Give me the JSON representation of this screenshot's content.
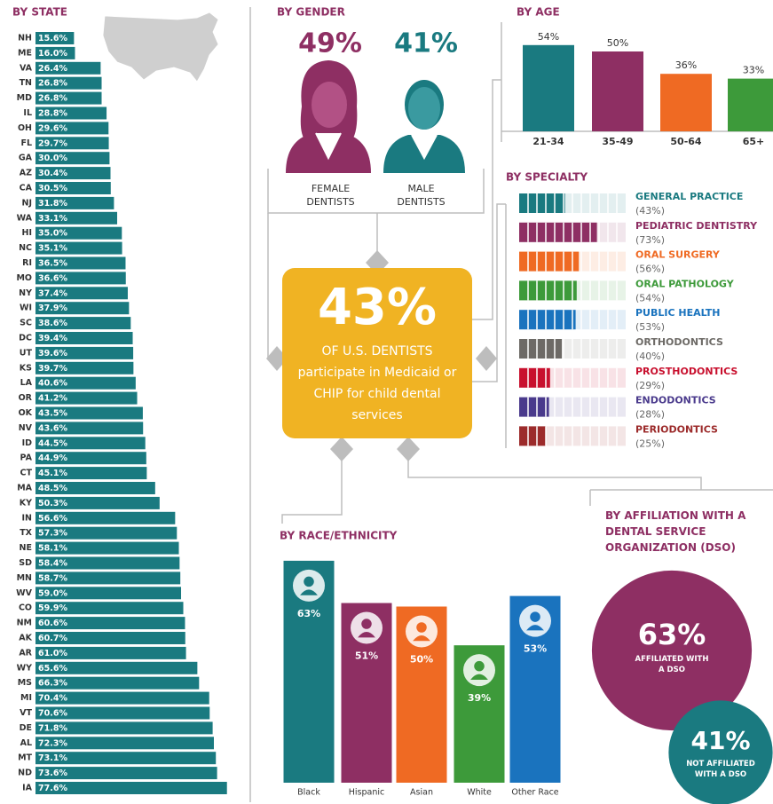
{
  "chart_data": [
    {
      "type": "bar",
      "orientation": "horizontal",
      "title": "BY STATE",
      "color": "#1a7a80",
      "categories": [
        "NH",
        "ME",
        "VA",
        "TN",
        "MD",
        "IL",
        "OH",
        "FL",
        "GA",
        "AZ",
        "CA",
        "NJ",
        "WA",
        "HI",
        "NC",
        "RI",
        "MO",
        "NY",
        "WI",
        "SC",
        "DC",
        "UT",
        "KS",
        "LA",
        "OR",
        "OK",
        "NV",
        "ID",
        "PA",
        "CT",
        "MA",
        "KY",
        "IN",
        "TX",
        "NE",
        "SD",
        "MN",
        "WV",
        "CO",
        "NM",
        "AK",
        "AR",
        "WY",
        "MS",
        "MI",
        "VT",
        "DE",
        "AL",
        "MT",
        "ND",
        "IA"
      ],
      "values": [
        15.6,
        16.0,
        26.4,
        26.8,
        26.8,
        28.8,
        29.6,
        29.7,
        30.0,
        30.4,
        30.5,
        31.8,
        33.1,
        35.0,
        35.1,
        36.5,
        36.6,
        37.4,
        37.9,
        38.6,
        39.4,
        39.6,
        39.7,
        40.6,
        41.2,
        43.5,
        43.6,
        44.5,
        44.9,
        45.1,
        48.5,
        50.3,
        56.6,
        57.3,
        58.1,
        58.4,
        58.7,
        59.0,
        59.9,
        60.6,
        60.7,
        61.0,
        65.6,
        66.3,
        70.4,
        70.6,
        71.8,
        72.3,
        73.1,
        73.6,
        77.6
      ],
      "value_labels": [
        "15.6%",
        "16.0%",
        "26.4%",
        "26.8%",
        "26.8%",
        "28.8%",
        "29.6%",
        "29.7%",
        "30.0%",
        "30.4%",
        "30.5%",
        "31.8%",
        "33.1%",
        "35.0%",
        "35.1%",
        "36.5%",
        "36.6%",
        "37.4%",
        "37.9%",
        "38.6%",
        "39.4%",
        "39.6%",
        "39.7%",
        "40.6%",
        "41.2%",
        "43.5%",
        "43.6%",
        "44.5%",
        "44.9%",
        "45.1%",
        "48.5%",
        "50.3%",
        "56.6%",
        "57.3%",
        "58.1%",
        "58.4%",
        "58.7%",
        "59.0%",
        "59.9%",
        "60.6%",
        "60.7%",
        "61.0%",
        "65.6%",
        "66.3%",
        "70.4%",
        "70.6%",
        "71.8%",
        "72.3%",
        "73.1%",
        "73.6%",
        "77.6%"
      ]
    },
    {
      "type": "pictogram",
      "title": "BY GENDER",
      "categories": [
        "FEMALE DENTISTS",
        "MALE DENTISTS"
      ],
      "values": [
        49,
        41
      ],
      "value_labels": [
        "49%",
        "41%"
      ],
      "colors": [
        "#8e2f63",
        "#1a7a80"
      ]
    },
    {
      "type": "bar",
      "orientation": "vertical",
      "title": "BY AGE",
      "categories": [
        "21-34",
        "35-49",
        "50-64",
        "65+"
      ],
      "values": [
        54,
        50,
        36,
        33
      ],
      "value_labels": [
        "54%",
        "50%",
        "36%",
        "33%"
      ],
      "colors": [
        "#1a7a80",
        "#8e2f63",
        "#ef6a23",
        "#3d9a3a"
      ]
    },
    {
      "type": "pictogram",
      "title": "BY SPECIALTY",
      "categories": [
        "GENERAL PRACTICE",
        "PEDIATRIC DENTISTRY",
        "ORAL SURGERY",
        "ORAL PATHOLOGY",
        "PUBLIC HEALTH",
        "ORTHODONTICS",
        "PROSTHODONTICS",
        "ENDODONTICS",
        "PERIODONTICS"
      ],
      "values": [
        43,
        73,
        56,
        54,
        53,
        40,
        29,
        28,
        25
      ],
      "value_labels": [
        "(43%)",
        "(73%)",
        "(56%)",
        "(54%)",
        "(53%)",
        "(40%)",
        "(29%)",
        "(28%)",
        "(25%)"
      ],
      "colors": [
        "#1a7a80",
        "#8e2f63",
        "#ef6a23",
        "#3d9a3a",
        "#1a73be",
        "#6d6a66",
        "#c8102e",
        "#4a3a8c",
        "#9c2b2b"
      ]
    },
    {
      "type": "bar",
      "orientation": "vertical",
      "title": "BY RACE/ETHNICITY",
      "categories": [
        "Black",
        "Hispanic",
        "Asian",
        "White",
        "Other Race"
      ],
      "values": [
        63,
        51,
        50,
        39,
        53
      ],
      "value_labels": [
        "63%",
        "51%",
        "50%",
        "39%",
        "53%"
      ],
      "colors": [
        "#1a7a80",
        "#8e2f63",
        "#ef6a23",
        "#3d9a3a",
        "#1a73be"
      ]
    },
    {
      "type": "bubble",
      "title": "BY AFFILIATION WITH A DENTAL SERVICE ORGANIZATION (DSO)",
      "categories": [
        "AFFILIATED WITH A DSO",
        "NOT AFFILIATED WITH A DSO"
      ],
      "values": [
        63,
        41
      ],
      "value_labels": [
        "63%",
        "41%"
      ],
      "colors": [
        "#8e2f63",
        "#1a7a80"
      ]
    }
  ],
  "callout": {
    "headline": "43%",
    "text": "OF U.S. DENTISTS participate in Medicaid or CHIP for child dental services"
  }
}
